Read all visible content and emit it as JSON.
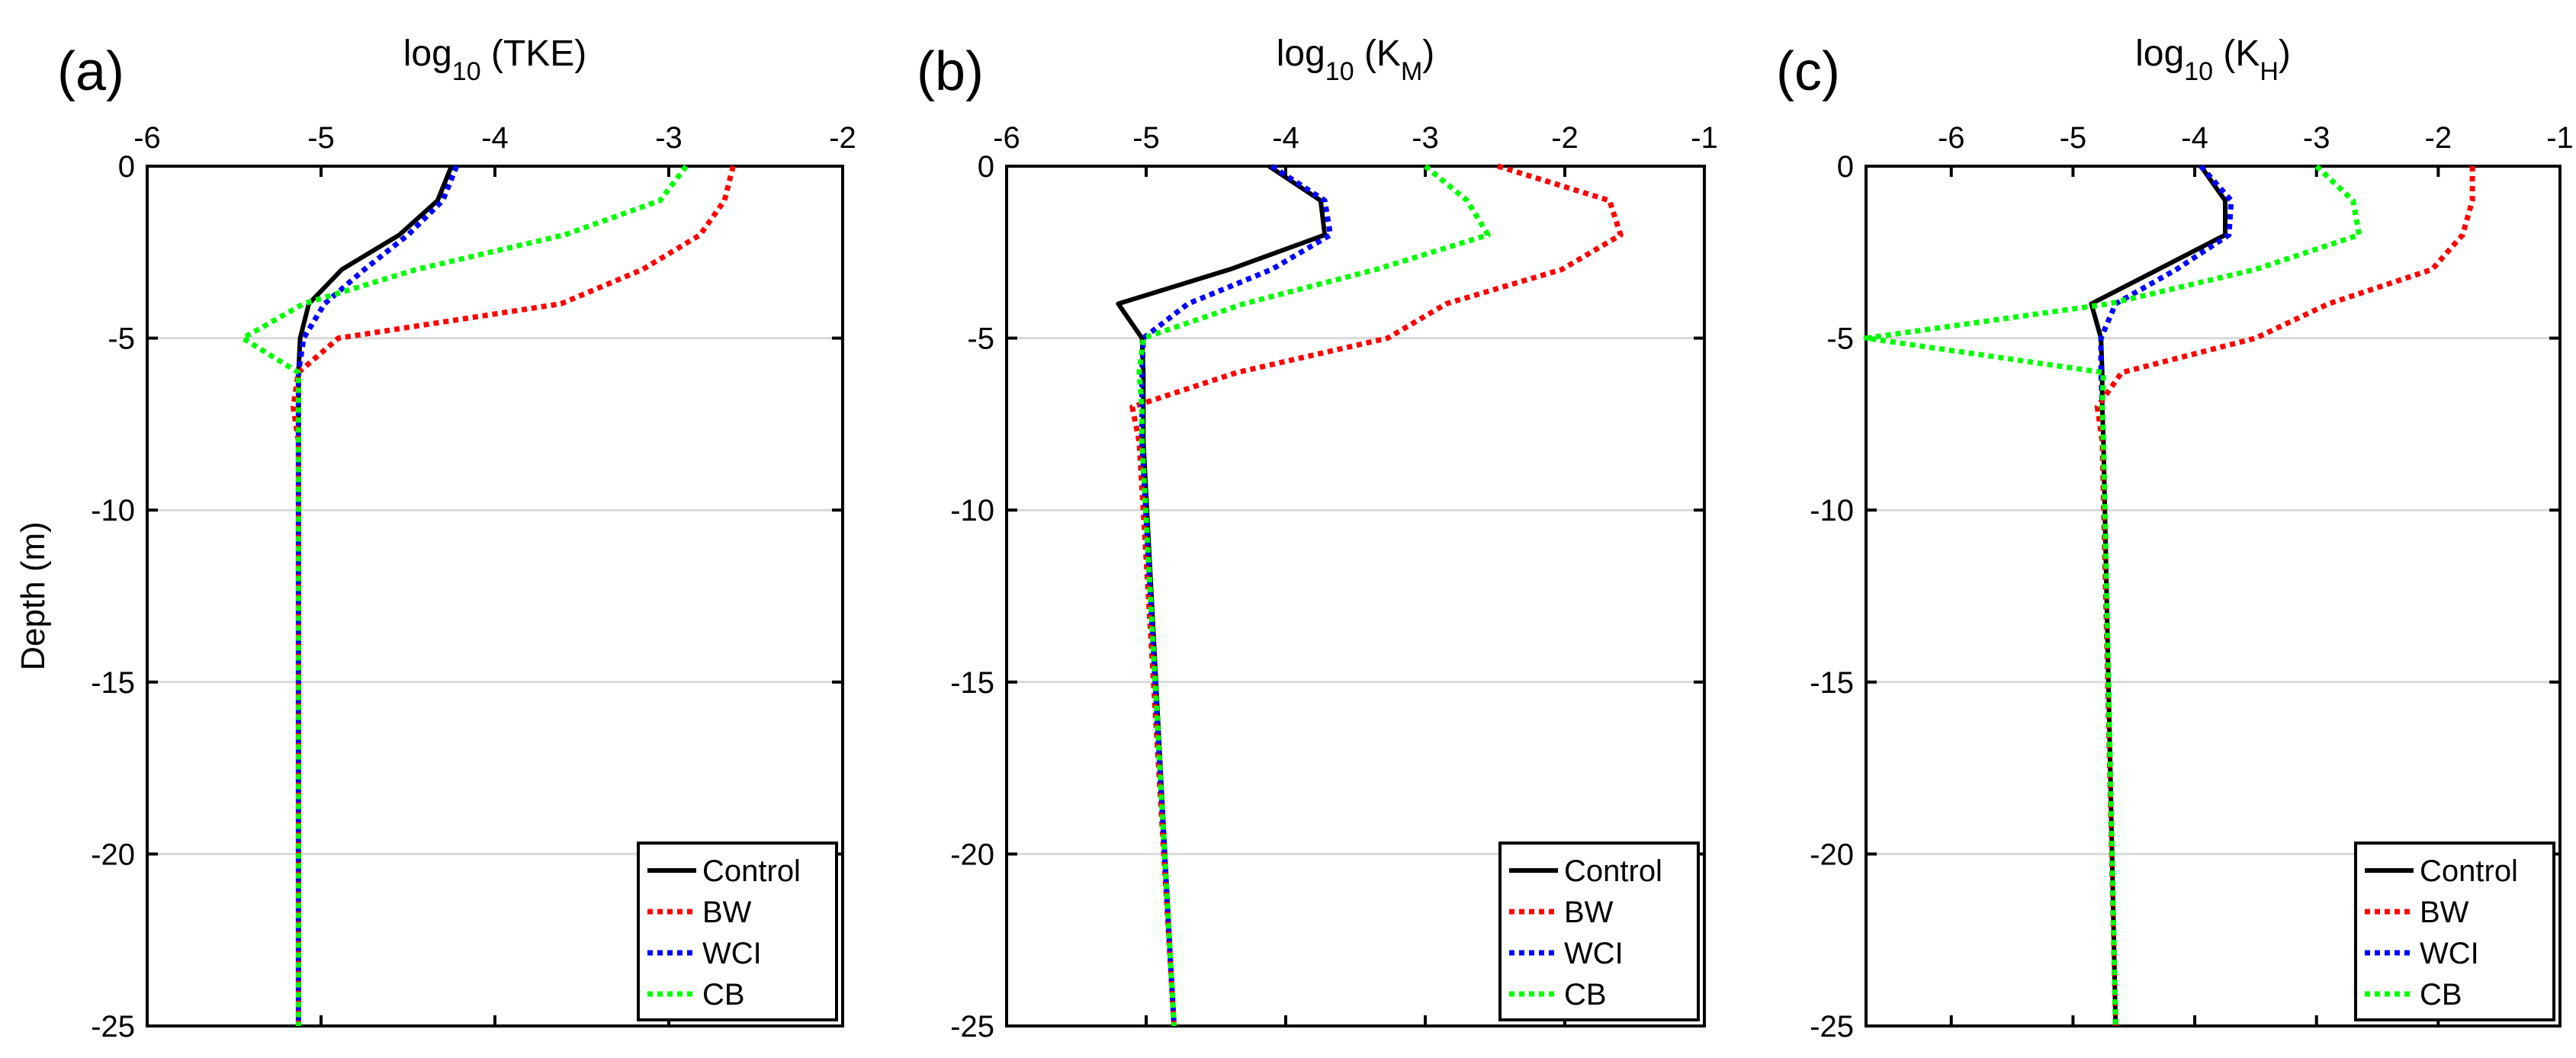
{
  "figure": {
    "background": "#ffffff",
    "grid_color": "#d9d9d9"
  },
  "chart_data": [
    {
      "type": "line",
      "panel_label": "(a)",
      "title_main": "log",
      "title_sub": "10",
      "title_rest": " (TKE)",
      "ylabel": "Depth (m)",
      "xlim": [
        -6,
        -2
      ],
      "ylim": [
        -25,
        0
      ],
      "xticks": [
        -6,
        -5,
        -4,
        -3,
        -2
      ],
      "yticks": [
        0,
        -5,
        -10,
        -15,
        -20,
        -25
      ],
      "xtick_labels": [
        "-6",
        "-5",
        "-4",
        "-3",
        "-2"
      ],
      "ytick_labels": [
        "0",
        "-5",
        "-10",
        "-15",
        "-20",
        "-25"
      ],
      "grid": "horizontal",
      "legend": {
        "position": "bottom-right"
      },
      "depth": [
        0,
        -1,
        -2,
        -3,
        -4,
        -5,
        -6,
        -7,
        -8,
        -25
      ],
      "series": [
        {
          "name": "Control",
          "color": "#000000",
          "style": "solid",
          "x": [
            -4.25,
            -4.33,
            -4.55,
            -4.88,
            -5.07,
            -5.12,
            -5.13,
            -5.13,
            -5.13,
            -5.13
          ]
        },
        {
          "name": "BW",
          "color": "#ff0000",
          "style": "dotted",
          "x": [
            -2.63,
            -2.68,
            -2.82,
            -3.15,
            -3.62,
            -4.9,
            -5.13,
            -5.16,
            -5.13,
            -5.13
          ]
        },
        {
          "name": "WCI",
          "color": "#0000ff",
          "style": "dotted",
          "x": [
            -4.22,
            -4.3,
            -4.5,
            -4.75,
            -4.98,
            -5.1,
            -5.13,
            -5.13,
            -5.13,
            -5.13
          ]
        },
        {
          "name": "CB",
          "color": "#00ff00",
          "style": "dotted",
          "x": [
            -2.9,
            -3.05,
            -3.6,
            -4.45,
            -5.1,
            -5.45,
            -5.13,
            -5.13,
            -5.13,
            -5.13
          ]
        }
      ]
    },
    {
      "type": "line",
      "panel_label": "(b)",
      "title_main": "log",
      "title_sub": "10",
      "title_rest": " (K",
      "title_sub2": "M",
      "title_end": ")",
      "ylabel": "",
      "xlim": [
        -6,
        -1
      ],
      "ylim": [
        -25,
        0
      ],
      "xticks": [
        -6,
        -5,
        -4,
        -3,
        -2,
        -1
      ],
      "yticks": [
        0,
        -5,
        -10,
        -15,
        -20,
        -25
      ],
      "xtick_labels": [
        "-6",
        "-5",
        "-4",
        "-3",
        "-2",
        "-1"
      ],
      "ytick_labels": [
        "0",
        "-5",
        "-10",
        "-15",
        "-20",
        "-25"
      ],
      "grid": "horizontal",
      "legend": {
        "position": "bottom-right"
      },
      "depth": [
        0,
        -1,
        -2,
        -3,
        -4,
        -5,
        -6,
        -7,
        -8,
        -25
      ],
      "series": [
        {
          "name": "Control",
          "color": "#000000",
          "style": "solid",
          "x": [
            -4.12,
            -3.75,
            -3.72,
            -4.4,
            -5.2,
            -5.03,
            -5.02,
            -5.02,
            -5.02,
            -4.8
          ]
        },
        {
          "name": "BW",
          "color": "#ff0000",
          "style": "dotted",
          "x": [
            -2.48,
            -1.68,
            -1.6,
            -2.02,
            -2.85,
            -3.27,
            -4.35,
            -5.1,
            -5.05,
            -4.8
          ]
        },
        {
          "name": "WCI",
          "color": "#0000ff",
          "style": "dotted",
          "x": [
            -4.1,
            -3.72,
            -3.68,
            -4.1,
            -4.7,
            -5.02,
            -5.03,
            -5.03,
            -5.03,
            -4.8
          ]
        },
        {
          "name": "CB",
          "color": "#00ff00",
          "style": "dotted",
          "x": [
            -3.0,
            -2.7,
            -2.55,
            -3.35,
            -4.3,
            -5.02,
            -5.05,
            -5.03,
            -5.03,
            -4.8
          ]
        }
      ]
    },
    {
      "type": "line",
      "panel_label": "(c)",
      "title_main": "log",
      "title_sub": "10",
      "title_rest": " (K",
      "title_sub2": "H",
      "title_end": ")",
      "ylabel": "",
      "xlim": [
        -6.7,
        -1
      ],
      "ylim": [
        -25,
        0
      ],
      "xticks": [
        -6,
        -5,
        -4,
        -3,
        -2,
        -1
      ],
      "yticks": [
        0,
        -5,
        -10,
        -15,
        -20,
        -25
      ],
      "xtick_labels": [
        "-6",
        "-5",
        "-4",
        "-3",
        "-2",
        "-1"
      ],
      "ytick_labels": [
        "0",
        "-5",
        "-10",
        "-15",
        "-20",
        "-25"
      ],
      "grid": "horizontal",
      "legend": {
        "position": "bottom-right"
      },
      "depth": [
        0,
        -1,
        -2,
        -3,
        -4,
        -5,
        -6,
        -7,
        -8,
        -25
      ],
      "series": [
        {
          "name": "Control",
          "color": "#000000",
          "style": "solid",
          "x": [
            -3.95,
            -3.75,
            -3.75,
            -4.3,
            -4.85,
            -4.77,
            -4.76,
            -4.76,
            -4.75,
            -4.65
          ]
        },
        {
          "name": "BW",
          "color": "#ff0000",
          "style": "dotted",
          "x": [
            -1.72,
            -1.72,
            -1.8,
            -2.05,
            -2.9,
            -3.5,
            -4.6,
            -4.8,
            -4.76,
            -4.65
          ]
        },
        {
          "name": "WCI",
          "color": "#0000ff",
          "style": "dotted",
          "x": [
            -3.95,
            -3.7,
            -3.72,
            -4.15,
            -4.65,
            -4.77,
            -4.77,
            -4.76,
            -4.75,
            -4.65
          ]
        },
        {
          "name": "CB",
          "color": "#00ff00",
          "style": "dotted",
          "x": [
            -3.0,
            -2.7,
            -2.65,
            -3.5,
            -4.7,
            -6.7,
            -4.75,
            -4.76,
            -4.75,
            -4.65
          ]
        }
      ]
    }
  ]
}
